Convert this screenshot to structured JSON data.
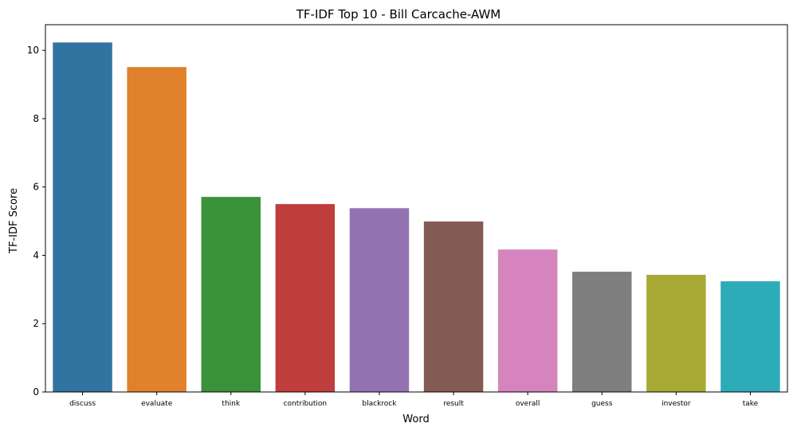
{
  "chart_data": {
    "type": "bar",
    "title": "TF-IDF Top 10 - Bill Carcache-AWM",
    "xlabel": "Word",
    "ylabel": "TF-IDF Score",
    "categories": [
      "discuss",
      "evaluate",
      "think",
      "contribution",
      "blackrock",
      "result",
      "overall",
      "guess",
      "investor",
      "take"
    ],
    "values": [
      10.23,
      9.51,
      5.71,
      5.5,
      5.38,
      4.99,
      4.17,
      3.52,
      3.43,
      3.24
    ],
    "colors": [
      "#3274a1",
      "#e1812c",
      "#3a923a",
      "#c03d3e",
      "#9372b2",
      "#845b53",
      "#d684bd",
      "#7f7f7f",
      "#a9aa35",
      "#2eabb8"
    ],
    "yticks": [
      0,
      2,
      4,
      6,
      8,
      10
    ],
    "ylim": [
      0,
      10.75
    ],
    "grid": false,
    "legend": "none"
  }
}
